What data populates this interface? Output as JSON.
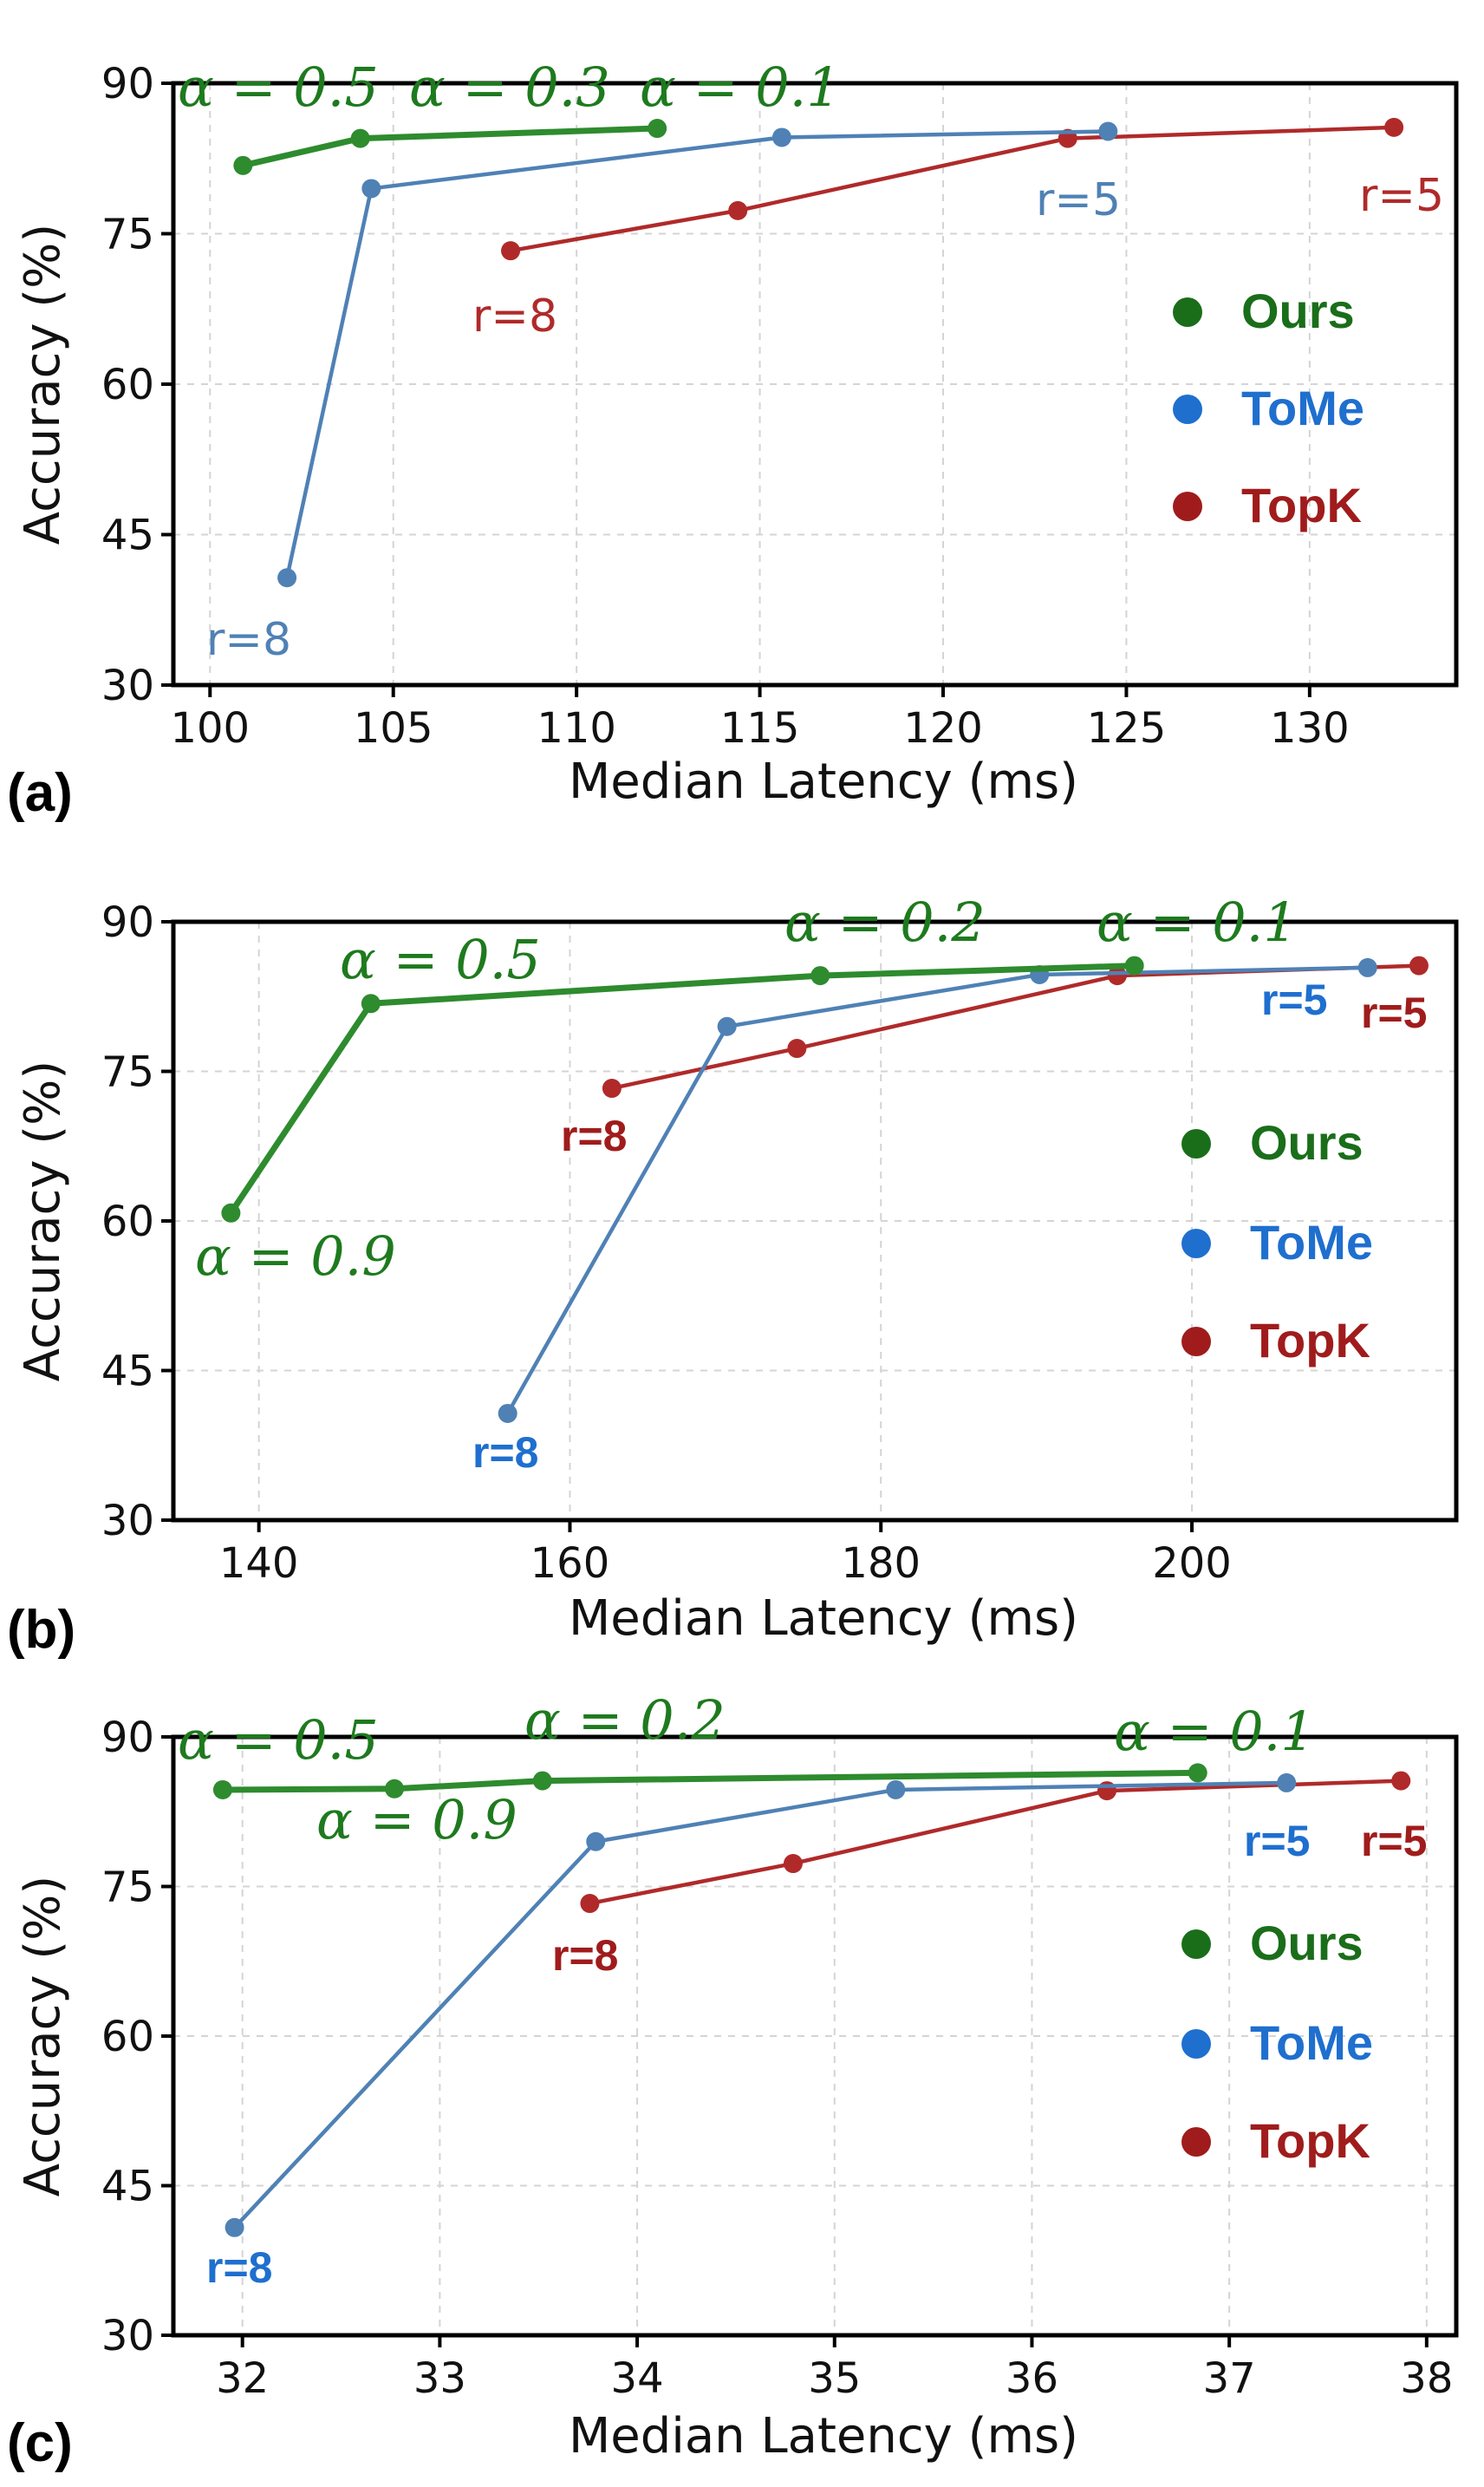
{
  "figure": {
    "colors": {
      "ours": "#2e8b2e",
      "ours_text": "#1e7a1e",
      "tome_a": "#4f81b5",
      "tome": "#1f6fcf",
      "topk": "#b02a2a",
      "topk_text": "#a01c1c",
      "legend_ours": "#1a6e1a",
      "legend_tome": "#1f6fcf",
      "legend_topk": "#a01c1c"
    }
  },
  "chart_data": [
    {
      "panel": "(a)",
      "type": "line",
      "xlabel": "Median Latency (ms)",
      "ylabel": "Accuracy (%)",
      "xlim": [
        99,
        134
      ],
      "ylim": [
        30,
        90
      ],
      "xticks": [
        100,
        105,
        110,
        115,
        120,
        125,
        130
      ],
      "yticks": [
        30,
        45,
        60,
        75,
        90
      ],
      "legend": [
        "Ours",
        "ToMe",
        "TopK"
      ],
      "series": [
        {
          "name": "Ours",
          "x": [
            100.9,
            104.1,
            112.2
          ],
          "y": [
            81.8,
            84.5,
            85.5
          ]
        },
        {
          "name": "ToMe",
          "x": [
            102.1,
            104.4,
            115.6,
            124.5
          ],
          "y": [
            40.7,
            79.5,
            84.6,
            85.2
          ]
        },
        {
          "name": "TopK",
          "x": [
            108.2,
            114.4,
            123.4,
            132.3
          ],
          "y": [
            73.3,
            77.3,
            84.5,
            85.6
          ]
        }
      ],
      "annotations": [
        {
          "text": "α = 0.5",
          "series": "Ours"
        },
        {
          "text": "α = 0.3",
          "series": "Ours"
        },
        {
          "text": "α = 0.1",
          "series": "Ours"
        },
        {
          "text": "r=8",
          "series": "ToMe"
        },
        {
          "text": "r=5",
          "series": "ToMe"
        },
        {
          "text": "r=8",
          "series": "TopK"
        },
        {
          "text": "r=5",
          "series": "TopK"
        }
      ]
    },
    {
      "panel": "(b)",
      "type": "line",
      "xlabel": "Median Latency (ms)",
      "ylabel": "Accuracy (%)",
      "xlim": [
        134.5,
        217
      ],
      "ylim": [
        30,
        90
      ],
      "xticks": [
        140,
        160,
        180,
        200
      ],
      "yticks": [
        30,
        45,
        60,
        75,
        90
      ],
      "legend": [
        "Ours",
        "ToMe",
        "TopK"
      ],
      "series": [
        {
          "name": "Ours",
          "x": [
            138.2,
            147.2,
            176.1,
            196.3
          ],
          "y": [
            60.8,
            81.8,
            84.6,
            85.6
          ]
        },
        {
          "name": "ToMe",
          "x": [
            156.0,
            170.1,
            190.2,
            211.3
          ],
          "y": [
            40.7,
            79.5,
            84.7,
            85.4
          ]
        },
        {
          "name": "TopK",
          "x": [
            162.7,
            174.6,
            195.2,
            214.6
          ],
          "y": [
            73.3,
            77.3,
            84.6,
            85.6
          ]
        }
      ],
      "annotations": [
        {
          "text": "α = 0.5",
          "series": "Ours"
        },
        {
          "text": "α = 0.2",
          "series": "Ours"
        },
        {
          "text": "α = 0.1",
          "series": "Ours"
        },
        {
          "text": "α = 0.9",
          "series": "Ours"
        },
        {
          "text": "r=5",
          "series": "ToMe"
        },
        {
          "text": "r=8",
          "series": "ToMe"
        },
        {
          "text": "r=8",
          "series": "TopK"
        },
        {
          "text": "r=5",
          "series": "TopK"
        }
      ]
    },
    {
      "panel": "(c)",
      "type": "line",
      "xlabel": "Median Latency (ms)",
      "ylabel": "Accuracy (%)",
      "xlim": [
        31.65,
        38.15
      ],
      "ylim": [
        30,
        90
      ],
      "xticks": [
        32,
        33,
        34,
        35,
        36,
        37,
        38
      ],
      "yticks": [
        30,
        45,
        60,
        75,
        90
      ],
      "legend": [
        "Ours",
        "ToMe",
        "TopK"
      ],
      "series": [
        {
          "name": "Ours",
          "x": [
            31.9,
            32.77,
            33.52,
            36.84
          ],
          "y": [
            84.7,
            84.8,
            85.6,
            86.4
          ]
        },
        {
          "name": "ToMe",
          "x": [
            31.96,
            33.79,
            35.31,
            37.29
          ],
          "y": [
            40.8,
            79.5,
            84.7,
            85.4
          ]
        },
        {
          "name": "TopK",
          "x": [
            33.76,
            34.79,
            36.38,
            37.87
          ],
          "y": [
            73.3,
            77.3,
            84.6,
            85.6
          ]
        }
      ],
      "annotations": [
        {
          "text": "α = 0.5",
          "series": "Ours"
        },
        {
          "text": "α = 0.9",
          "series": "Ours"
        },
        {
          "text": "α = 0.2",
          "series": "Ours"
        },
        {
          "text": "α = 0.1",
          "series": "Ours"
        },
        {
          "text": "r=8",
          "series": "ToMe"
        },
        {
          "text": "r=5",
          "series": "ToMe"
        },
        {
          "text": "r=8",
          "series": "TopK"
        },
        {
          "text": "r=5",
          "series": "TopK"
        }
      ]
    }
  ]
}
